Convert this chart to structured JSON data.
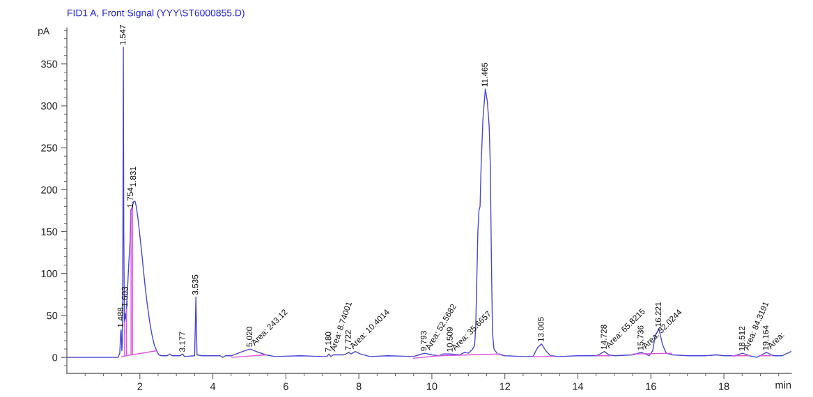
{
  "chart_data": {
    "type": "line",
    "title": "FID1 A, Front Signal (YYY\\ST6000855.D)",
    "xlabel": "min",
    "ylabel": "pA",
    "xlim": [
      0,
      19.85
    ],
    "ylim": [
      -19,
      393
    ],
    "xticks": [
      {
        "value": 0.5,
        "label": null
      },
      {
        "value": 1,
        "label": null
      },
      {
        "value": 1.5,
        "label": null
      },
      2,
      {
        "value": 2.5,
        "label": null
      },
      {
        "value": 3,
        "label": null
      },
      {
        "value": 3.5,
        "label": null
      },
      4,
      {
        "value": 4.5,
        "label": null
      },
      {
        "value": 5,
        "label": null
      },
      {
        "value": 5.5,
        "label": null
      },
      6,
      {
        "value": 6.5,
        "label": null
      },
      {
        "value": 7,
        "label": null
      },
      {
        "value": 7.5,
        "label": null
      },
      8,
      {
        "value": 8.5,
        "label": null
      },
      {
        "value": 9,
        "label": null
      },
      {
        "value": 9.5,
        "label": null
      },
      10,
      {
        "value": 10.5,
        "label": null
      },
      {
        "value": 11,
        "label": null
      },
      {
        "value": 11.5,
        "label": null
      },
      12,
      {
        "value": 12.5,
        "label": null
      },
      {
        "value": 13,
        "label": null
      },
      {
        "value": 13.5,
        "label": null
      },
      14,
      {
        "value": 14.5,
        "label": null
      },
      {
        "value": 15,
        "label": null
      },
      {
        "value": 15.5,
        "label": null
      },
      16,
      {
        "value": 16.5,
        "label": null
      },
      {
        "value": 17,
        "label": null
      },
      {
        "value": 17.5,
        "label": null
      },
      18,
      {
        "value": 18.5,
        "label": null
      },
      {
        "value": 19,
        "label": null
      },
      {
        "value": 19.5,
        "label": null
      }
    ],
    "yticks": [
      {
        "value": -10,
        "label": null
      },
      0,
      {
        "value": 10,
        "label": null
      },
      {
        "value": 20,
        "label": null
      },
      {
        "value": 30,
        "label": null
      },
      {
        "value": 40,
        "label": null
      },
      50,
      {
        "value": 60,
        "label": null
      },
      {
        "value": 70,
        "label": null
      },
      {
        "value": 80,
        "label": null
      },
      {
        "value": 90,
        "label": null
      },
      100,
      {
        "value": 110,
        "label": null
      },
      {
        "value": 120,
        "label": null
      },
      {
        "value": 130,
        "label": null
      },
      {
        "value": 140,
        "label": null
      },
      150,
      {
        "value": 160,
        "label": null
      },
      {
        "value": 170,
        "label": null
      },
      {
        "value": 180,
        "label": null
      },
      {
        "value": 190,
        "label": null
      },
      200,
      {
        "value": 210,
        "label": null
      },
      {
        "value": 220,
        "label": null
      },
      {
        "value": 230,
        "label": null
      },
      {
        "value": 240,
        "label": null
      },
      250,
      {
        "value": 260,
        "label": null
      },
      {
        "value": 270,
        "label": null
      },
      {
        "value": 280,
        "label": null
      },
      {
        "value": 290,
        "label": null
      },
      300,
      {
        "value": 310,
        "label": null
      },
      {
        "value": 320,
        "label": null
      },
      {
        "value": 330,
        "label": null
      },
      {
        "value": 340,
        "label": null
      },
      350,
      {
        "value": 360,
        "label": null
      },
      {
        "value": 370,
        "label": null
      },
      {
        "value": 380,
        "label": null
      },
      {
        "value": 390,
        "label": null
      }
    ],
    "series": [
      {
        "color": "#4646d2",
        "x": [
          0,
          0.5,
          1.0,
          1.4,
          1.45,
          1.475,
          1.488,
          1.505,
          1.525,
          1.535,
          1.547,
          1.56,
          1.575,
          1.59,
          1.603,
          1.62,
          1.65,
          1.7,
          1.735,
          1.754,
          1.78,
          1.8,
          1.831,
          1.87,
          1.9,
          1.95,
          2.0,
          2.05,
          2.1,
          2.15,
          2.2,
          2.27,
          2.33,
          2.4,
          2.47,
          2.52,
          2.6,
          2.75,
          2.82,
          2.88,
          3.1,
          3.177,
          3.22,
          3.5,
          3.535,
          3.565,
          3.7,
          4.2,
          4.27,
          4.35,
          4.52,
          4.75,
          5.02,
          5.25,
          5.45,
          5.7,
          6.4,
          7.0,
          7.12,
          7.18,
          7.23,
          7.3,
          7.6,
          7.722,
          7.78,
          7.9,
          8.05,
          8.3,
          8.8,
          9.5,
          9.65,
          9.793,
          10.0,
          10.2,
          10.3,
          10.4,
          10.509,
          10.75,
          10.9,
          11.0,
          11.1,
          11.17,
          11.2,
          11.23,
          11.26,
          11.29,
          11.32,
          11.35,
          11.4,
          11.465,
          11.52,
          11.57,
          11.6,
          11.63,
          11.66,
          11.7,
          11.8,
          12.0,
          12.5,
          12.77,
          12.9,
          13.005,
          13.12,
          13.25,
          13.5,
          14.0,
          14.5,
          14.6,
          14.728,
          14.85,
          15.0,
          15.5,
          15.736,
          15.85,
          15.95,
          16.05,
          16.12,
          16.221,
          16.32,
          16.42,
          16.6,
          17.0,
          17.5,
          17.8,
          18.0,
          18.3,
          18.512,
          18.7,
          18.9,
          19.0,
          19.164,
          19.35,
          19.6,
          19.84
        ],
        "values": [
          0,
          0,
          0,
          0,
          5,
          30,
          33,
          8,
          20,
          150,
          370,
          150,
          42,
          45,
          52,
          46,
          72,
          115,
          140,
          176,
          178,
          181,
          186,
          186,
          180,
          165,
          145,
          125,
          103,
          82,
          64,
          42,
          27,
          14,
          7,
          3,
          2,
          2,
          4,
          2,
          2,
          4,
          1,
          2,
          72,
          3,
          2,
          2,
          0,
          2,
          2,
          6,
          10,
          6,
          3,
          1,
          2,
          1,
          1,
          4,
          1,
          3,
          3,
          6,
          4,
          7,
          4,
          1,
          2,
          1,
          3,
          5,
          3,
          2,
          4,
          4,
          4,
          3,
          6,
          5,
          9,
          14,
          35,
          90,
          150,
          175,
          180,
          230,
          285,
          320,
          305,
          275,
          230,
          120,
          30,
          10,
          4,
          2,
          1,
          1,
          12,
          16,
          8,
          2,
          1,
          2,
          2,
          4,
          7,
          3,
          2,
          3,
          6,
          4,
          2,
          8,
          26,
          34,
          15,
          5,
          3,
          2,
          2,
          3,
          2,
          2,
          5,
          2,
          0,
          2,
          6,
          2,
          2,
          7
        ]
      },
      {
        "color": "#e052e0",
        "x": [
          1.5,
          2.47
        ],
        "values": [
          1,
          8
        ]
      },
      {
        "color": "#e052e0",
        "x": [
          1.582,
          1.582
        ],
        "values": [
          1,
          43
        ]
      },
      {
        "color": "#e052e0",
        "x": [
          1.633,
          1.633
        ],
        "values": [
          2,
          57
        ]
      },
      {
        "color": "#e052e0",
        "x": [
          1.758,
          1.758
        ],
        "values": [
          3,
          176
        ]
      },
      {
        "color": "#e052e0",
        "x": [
          1.8,
          1.8
        ],
        "values": [
          3,
          181
        ]
      },
      {
        "color": "#e052e0",
        "x": [
          4.52,
          5.45
        ],
        "values": [
          0,
          3
        ]
      },
      {
        "color": "#e052e0",
        "x": [
          9.5,
          10.2,
          11.87
        ],
        "values": [
          -1,
          2,
          4
        ]
      },
      {
        "color": "#e052e0",
        "x": [
          12.77,
          13.35
        ],
        "values": [
          1,
          1
        ]
      },
      {
        "color": "#e052e0",
        "x": [
          14.5,
          14.9
        ],
        "values": [
          2,
          2
        ]
      },
      {
        "color": "#e052e0",
        "x": [
          15.52,
          16.57
        ],
        "values": [
          4,
          5
        ]
      },
      {
        "color": "#e052e0",
        "x": [
          18.23,
          18.7
        ],
        "values": [
          2,
          2
        ]
      },
      {
        "color": "#e052e0",
        "x": [
          18.97,
          19.28
        ],
        "values": [
          2,
          2
        ]
      }
    ],
    "annotations": [
      {
        "text": "1.488",
        "x": 1.488,
        "y": 33
      },
      {
        "text": "1.547",
        "x": 1.547,
        "y": 370
      },
      {
        "text": "1.603",
        "x": 1.603,
        "y": 52
      },
      {
        "text": "1.754",
        "x": 1.754,
        "y": 176
      },
      {
        "text": "1.831",
        "x": 1.831,
        "y": 186
      },
      {
        "text": "3.177",
        "x": 3.177,
        "y": 4
      },
      {
        "text": "3.535",
        "x": 3.535,
        "y": 72
      },
      {
        "text": "5.020",
        "x": 5.02,
        "y": 10
      },
      {
        "text": "Area: 243.12",
        "x": 5.02,
        "y": 10
      },
      {
        "text": "7.180",
        "x": 7.18,
        "y": 4
      },
      {
        "text": "Area: 8.74001",
        "x": 7.18,
        "y": 4
      },
      {
        "text": "7.722",
        "x": 7.722,
        "y": 6
      },
      {
        "text": "Area: 10.4014",
        "x": 7.722,
        "y": 6
      },
      {
        "text": "9.793",
        "x": 9.793,
        "y": 5
      },
      {
        "text": "Area: 52.5682",
        "x": 9.793,
        "y": 5
      },
      {
        "text": "10.509",
        "x": 10.509,
        "y": 4
      },
      {
        "text": "Area: 35.6657",
        "x": 10.509,
        "y": 4
      },
      {
        "text": "11.465",
        "x": 11.465,
        "y": 320
      },
      {
        "text": "13.005",
        "x": 13.005,
        "y": 16
      },
      {
        "text": "14.728",
        "x": 14.728,
        "y": 7
      },
      {
        "text": "Area: 65.8215",
        "x": 14.728,
        "y": 7
      },
      {
        "text": "15.736",
        "x": 15.736,
        "y": 6
      },
      {
        "text": "Area: 32.0244",
        "x": 15.736,
        "y": 6
      },
      {
        "text": "16.221",
        "x": 16.221,
        "y": 34
      },
      {
        "text": "18.512",
        "x": 18.512,
        "y": 5
      },
      {
        "text": "Area: 84.3191",
        "x": 18.512,
        "y": 5
      },
      {
        "text": "19.164",
        "x": 19.164,
        "y": 6
      },
      {
        "text": "Area:",
        "x": 19.164,
        "y": 6
      }
    ]
  }
}
